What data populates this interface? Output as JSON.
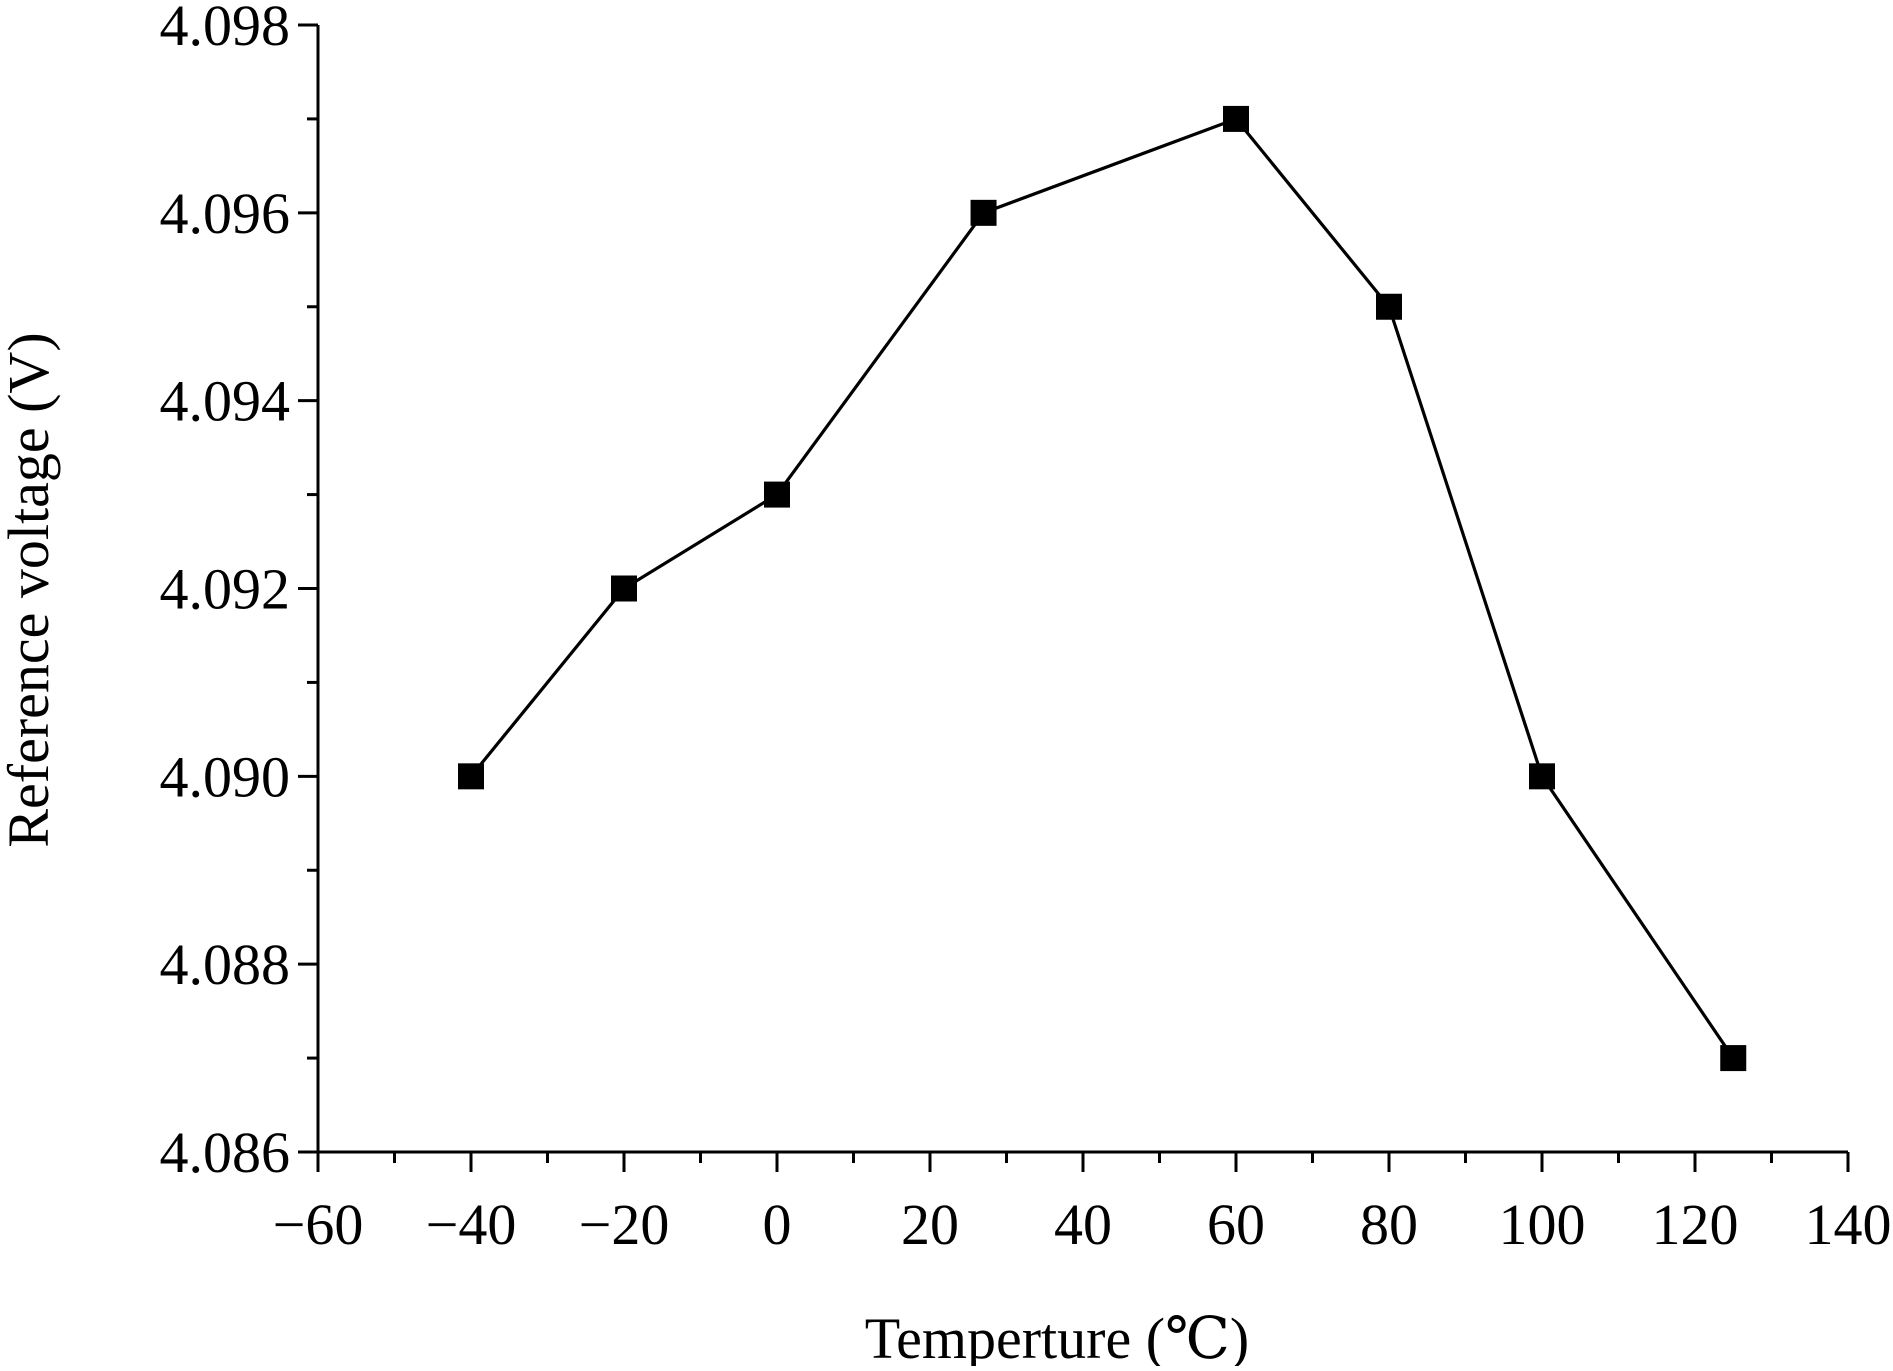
{
  "chart_data": {
    "type": "line",
    "title": "",
    "xlabel": "Temperture (℃)",
    "ylabel": "Reference voltage (V)",
    "xlim": [
      -60,
      140
    ],
    "ylim": [
      4.086,
      4.098
    ],
    "x_ticks": [
      "−60",
      "−40",
      "−20",
      "0",
      "20",
      "40",
      "60",
      "80",
      "100",
      "120",
      "140"
    ],
    "y_ticks": [
      "4.086",
      "4.088",
      "4.090",
      "4.092",
      "4.094",
      "4.096",
      "4.098"
    ],
    "grid": false,
    "legend": "none",
    "series": [
      {
        "marker": "square",
        "color": "#000000",
        "x": [
          -40,
          -20,
          0,
          27,
          60,
          80,
          100,
          125
        ],
        "y": [
          4.09,
          4.092,
          4.093,
          4.096,
          4.097,
          4.095,
          4.09,
          4.087
        ]
      }
    ]
  }
}
